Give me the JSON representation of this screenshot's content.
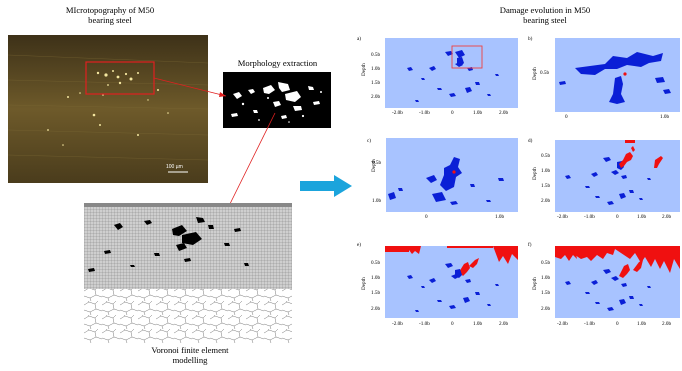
{
  "left": {
    "micro_title": "MIcrotopography of M50",
    "micro_subtitle": "bearing steel",
    "scale_bar": "100 µm",
    "morph_title": "Morphology extraction",
    "fe_title_line1": "Voronoi finite element",
    "fe_title_line2": "modelling"
  },
  "right": {
    "title_line1": "Damage evolution in M50",
    "title_line2": "bearing steel",
    "depth_label": "Depth",
    "panels": {
      "a": {
        "tag": "a)",
        "ylabels": [
          "0.5b",
          "1.0b",
          "1.5b",
          "2.0b"
        ],
        "xlabels": [
          "-2.0b",
          "-1.0b",
          "0",
          "1.0b",
          "2.0b"
        ]
      },
      "b": {
        "tag": "b)",
        "ylabels": [
          "0.5b"
        ],
        "xlabels": [
          "0",
          "1.0b"
        ]
      },
      "c": {
        "tag": "c)",
        "ylabels": [
          "0.5b",
          "1.0b"
        ],
        "xlabels": [
          "0",
          "1.0b"
        ]
      },
      "d": {
        "tag": "d)",
        "ylabels": [
          "0.5b",
          "1.0b",
          "1.5b",
          "2.0b"
        ],
        "xlabels": [
          "-2.0b",
          "-1.0b",
          "0",
          "1.0b",
          "2.0b"
        ]
      },
      "e": {
        "tag": "e)",
        "ylabels": [
          "0.5b",
          "1.0b",
          "1.5b",
          "2.0b"
        ],
        "xlabels": [
          "-2.0b",
          "-1.0b",
          "0",
          "1.0b",
          "2.0b"
        ]
      },
      "f": {
        "tag": "f)",
        "ylabels": [
          "0.5b",
          "1.0b",
          "1.5b",
          "2.0b"
        ],
        "xlabels": [
          "-2.0b",
          "-1.0b",
          "0",
          "1.0b",
          "2.0b"
        ]
      }
    }
  },
  "colors": {
    "panel_bg": "#a8c3ff",
    "damage_blue": "#0a1fd6",
    "crack_red": "#f01010",
    "arrow": "#1ba4dc",
    "micro_bg": "#5a4a22"
  }
}
